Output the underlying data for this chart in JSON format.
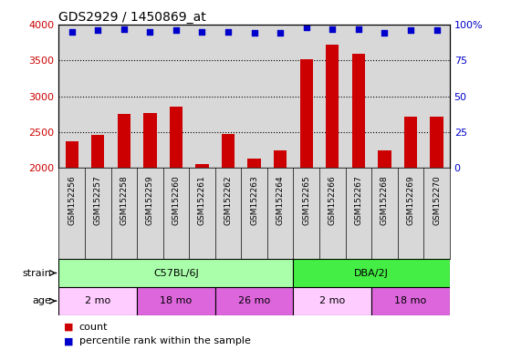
{
  "title": "GDS2929 / 1450869_at",
  "samples": [
    "GSM152256",
    "GSM152257",
    "GSM152258",
    "GSM152259",
    "GSM152260",
    "GSM152261",
    "GSM152262",
    "GSM152263",
    "GSM152264",
    "GSM152265",
    "GSM152266",
    "GSM152267",
    "GSM152268",
    "GSM152269",
    "GSM152270"
  ],
  "counts": [
    2370,
    2460,
    2750,
    2760,
    2860,
    2060,
    2470,
    2130,
    2240,
    3520,
    3720,
    3590,
    2240,
    2710,
    2710
  ],
  "percentile_ranks": [
    95,
    96,
    97,
    95,
    96,
    95,
    95,
    94,
    94,
    98,
    97,
    97,
    94,
    96,
    96
  ],
  "ylim_left": [
    2000,
    4000
  ],
  "ylim_right": [
    0,
    100
  ],
  "yticks_left": [
    2000,
    2500,
    3000,
    3500,
    4000
  ],
  "yticks_right": [
    0,
    25,
    50,
    75,
    100
  ],
  "bar_color": "#cc0000",
  "dot_color": "#0000cc",
  "chart_bg": "#d8d8d8",
  "strain_groups": [
    {
      "label": "C57BL/6J",
      "start": 0,
      "end": 9,
      "color": "#aaffaa"
    },
    {
      "label": "DBA/2J",
      "start": 9,
      "end": 15,
      "color": "#44ee44"
    }
  ],
  "age_groups": [
    {
      "label": "2 mo",
      "start": 0,
      "end": 3,
      "color": "#ffaaff"
    },
    {
      "label": "18 mo",
      "start": 3,
      "end": 6,
      "color": "#ee66ee"
    },
    {
      "label": "26 mo",
      "start": 6,
      "end": 9,
      "color": "#ee66ee"
    },
    {
      "label": "2 mo",
      "start": 9,
      "end": 12,
      "color": "#ffaaff"
    },
    {
      "label": "18 mo",
      "start": 12,
      "end": 15,
      "color": "#ee66ee"
    }
  ],
  "legend_count_label": "count",
  "legend_pct_label": "percentile rank within the sample",
  "strain_label": "strain",
  "age_label": "age",
  "left_axis_color": "#cc0000",
  "right_axis_color": "#0000cc"
}
